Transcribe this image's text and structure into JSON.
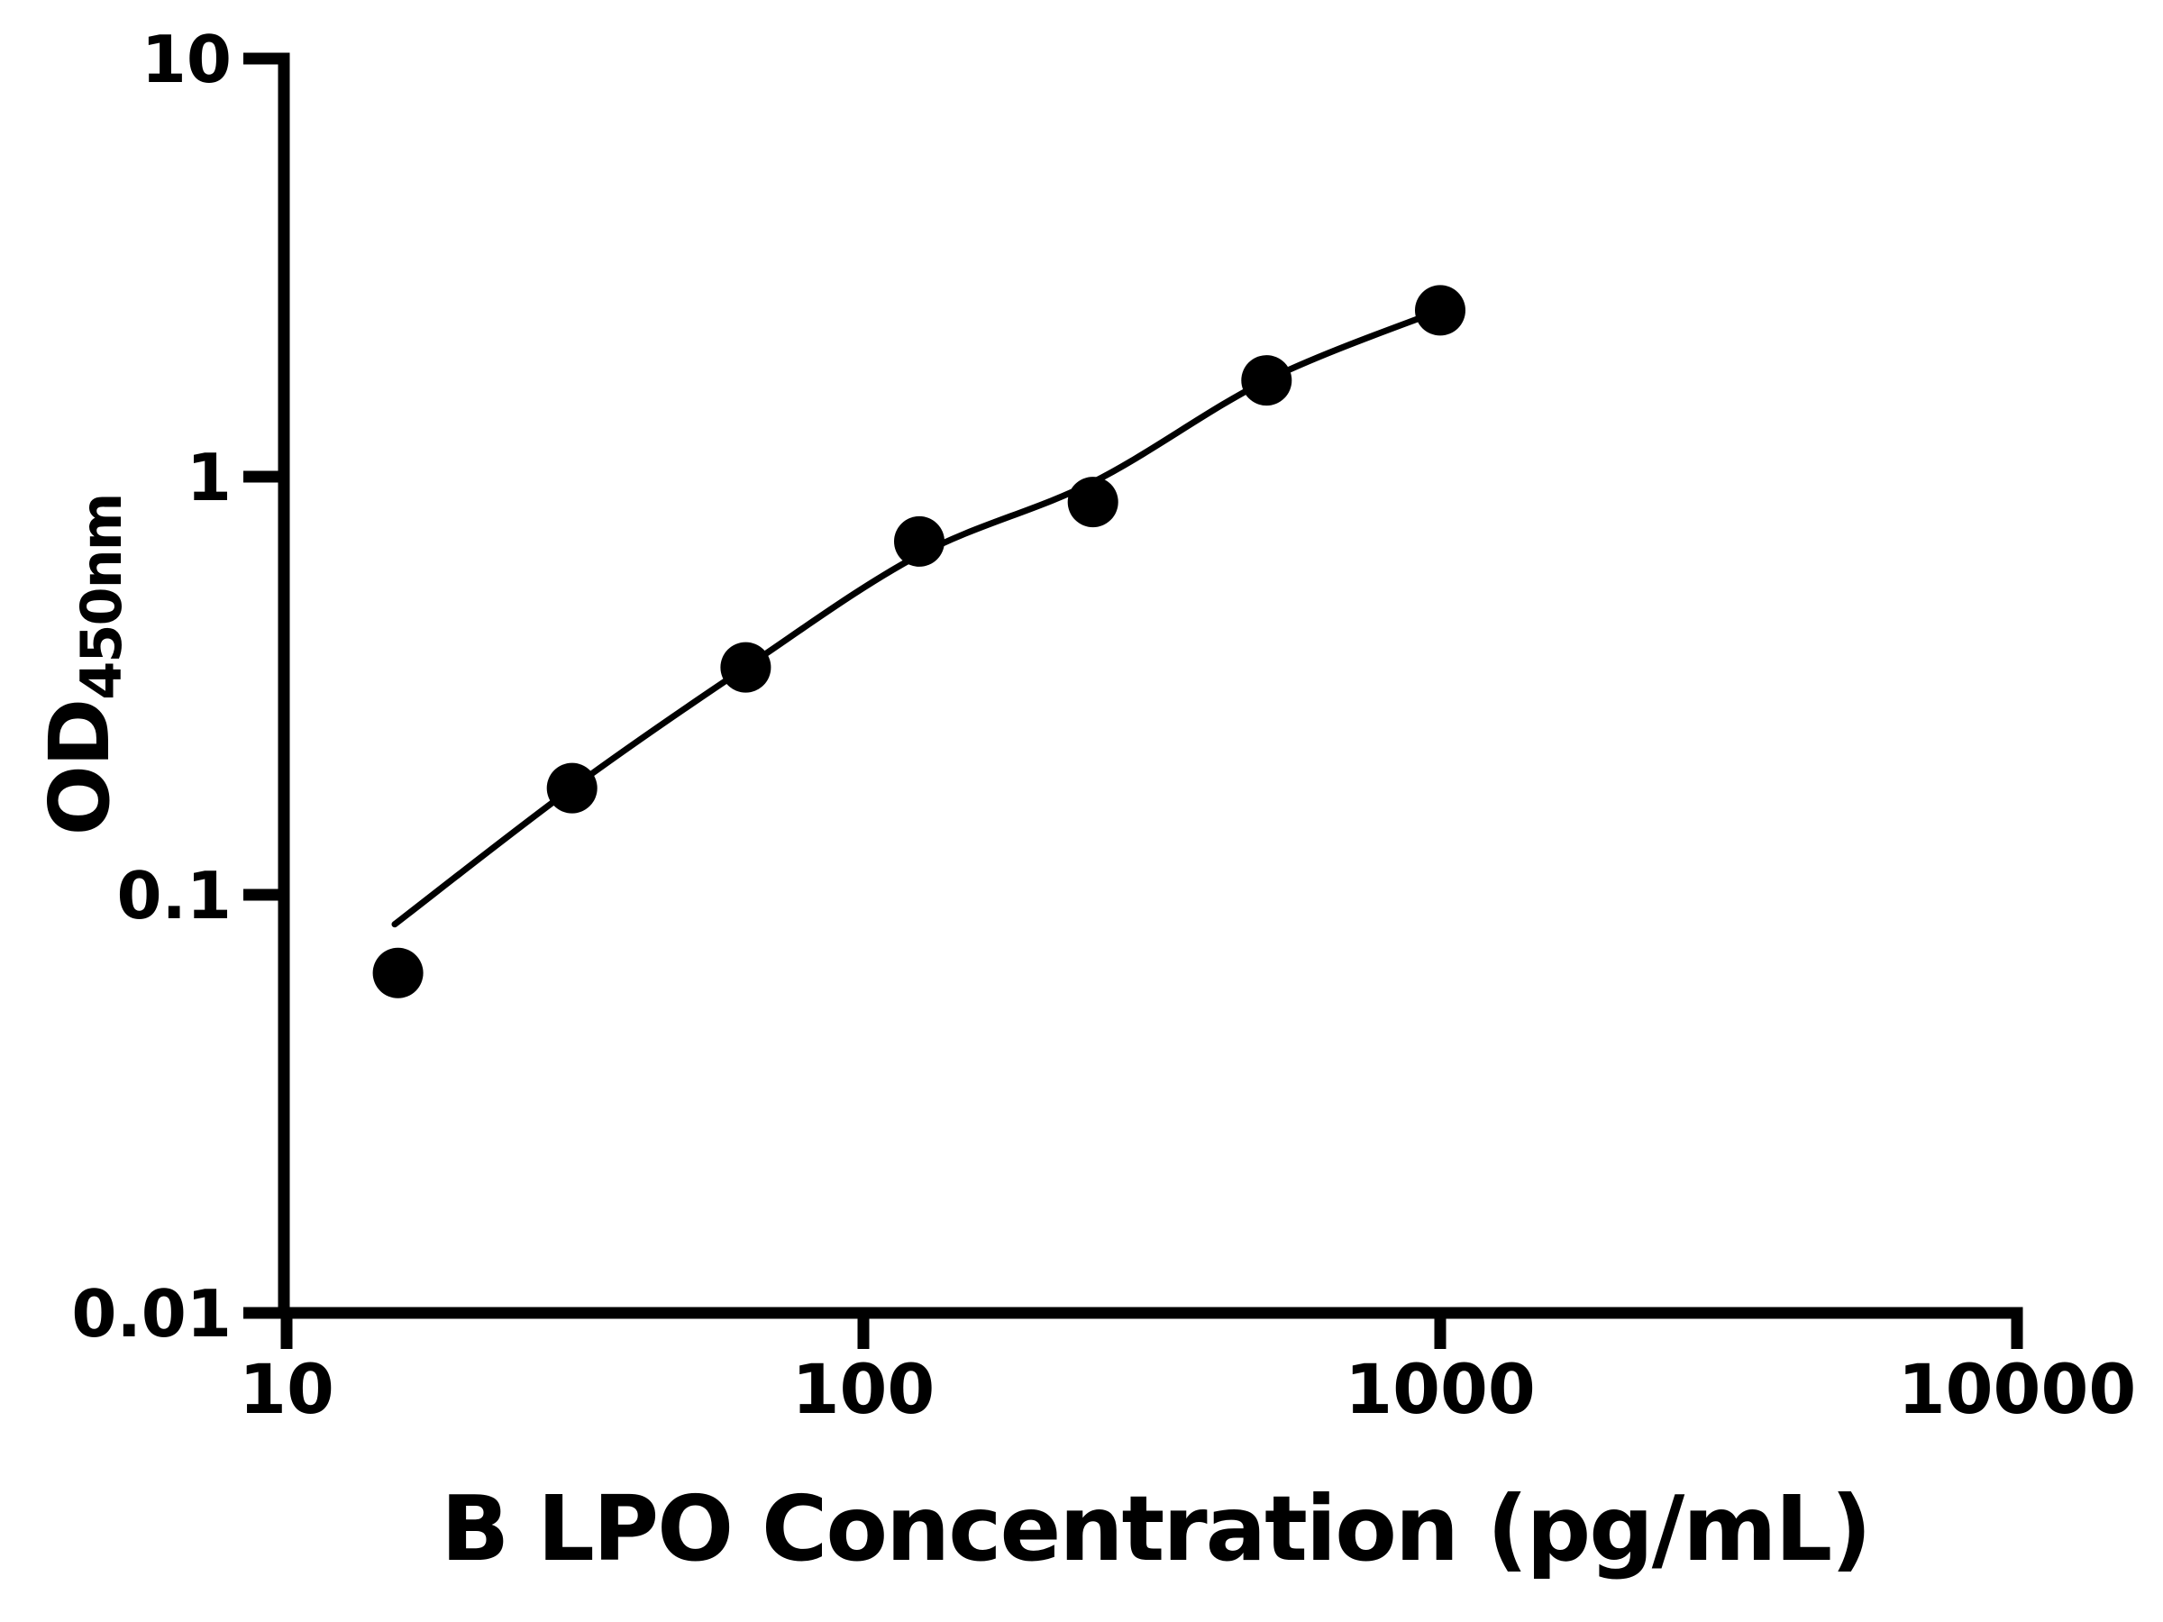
{
  "figure": {
    "background_color": "#ffffff",
    "ink_color": "#000000"
  },
  "chart_data": {
    "type": "scatter",
    "title": "",
    "xlabel": "B LPO Concentration (pg/mL)",
    "ylabel": "OD",
    "ylabel_subscript": "450nm",
    "x_scale": "log",
    "y_scale": "log",
    "xlim": [
      10,
      10000
    ],
    "ylim": [
      0.01,
      10
    ],
    "x_ticks": [
      10,
      100,
      1000,
      10000
    ],
    "x_tick_labels": [
      "10",
      "100",
      "1000",
      "10000"
    ],
    "y_ticks": [
      0.01,
      0.1,
      1,
      10
    ],
    "y_tick_labels": [
      "0.01",
      "0.1",
      "1",
      "10"
    ],
    "grid": false,
    "legend": false,
    "series": [
      {
        "name": "standard-points",
        "marker": "filled-circle",
        "color": "#000000",
        "points": [
          {
            "x": 15.6,
            "y": 0.065
          },
          {
            "x": 31.25,
            "y": 0.18
          },
          {
            "x": 62.5,
            "y": 0.35
          },
          {
            "x": 125,
            "y": 0.7
          },
          {
            "x": 250,
            "y": 0.87
          },
          {
            "x": 500,
            "y": 1.7
          },
          {
            "x": 1000,
            "y": 2.5
          }
        ]
      }
    ],
    "fit_curve": {
      "color": "#000000",
      "points": [
        [
          15.4,
          0.085
        ],
        [
          31.25,
          0.18
        ],
        [
          62.5,
          0.35
        ],
        [
          125,
          0.65
        ],
        [
          250,
          0.97
        ],
        [
          500,
          1.7
        ],
        [
          1000,
          2.5
        ]
      ]
    }
  }
}
